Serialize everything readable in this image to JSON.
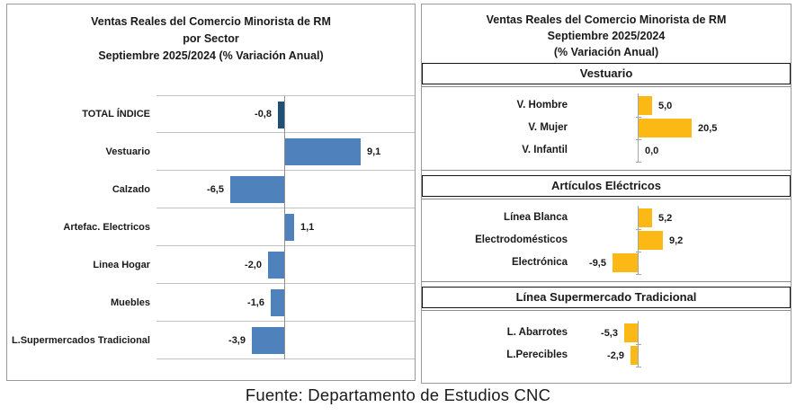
{
  "caption": "Fuente: Departamento de Estudios CNC",
  "colors": {
    "bar_blue": "#4F81BD",
    "bar_navy": "#1F4E79",
    "bar_gold": "#FCB814",
    "gridline": "#C3C3C3",
    "panel_border": "#9A9A9A",
    "header_border": "#141414"
  },
  "chart_data": [
    {
      "type": "bar",
      "orientation": "horizontal",
      "title": "Ventas Reales del Comercio Minorista de RM por Sector Septiembre 2025/2024 (% Variación Anual)",
      "title_lines": [
        "Ventas Reales del Comercio Minorista de RM",
        "por Sector",
        "Septiembre 2025/2024 (% Variación Anual)"
      ],
      "categories": [
        "TOTAL ÍNDICE",
        "Vestuario",
        "Calzado",
        "Artefac. Electricos",
        "Linea Hogar",
        "Muebles",
        "L.Supermercados Tradicional"
      ],
      "values": [
        -0.8,
        9.1,
        -6.5,
        1.1,
        -2.0,
        -1.6,
        -3.9
      ],
      "value_labels": [
        "-0,8",
        "9,1",
        "-6,5",
        "1,1",
        "-2,0",
        "-1,6",
        "-3,9"
      ],
      "bar_colors": [
        "#1F4E79",
        "#4F81BD",
        "#4F81BD",
        "#4F81BD",
        "#4F81BD",
        "#4F81BD",
        "#4F81BD"
      ],
      "xlim": [
        -15,
        15
      ],
      "grid": "row-separators",
      "legend": "none",
      "ylabel": "",
      "xlabel": ""
    },
    {
      "type": "bar",
      "orientation": "horizontal",
      "title": "Ventas Reales del Comercio Minorista de RM Septiembre 2025/2024 (% Variación Anual)",
      "title_lines": [
        "Ventas Reales del Comercio Minorista de RM",
        "Septiembre 2025/2024",
        "(% Variación Anual)"
      ],
      "bar_color": "#FCB814",
      "xlim": [
        -23,
        58
      ],
      "grid": "off",
      "legend": "none",
      "sections": [
        {
          "header": "Vestuario",
          "categories": [
            "V. Hombre",
            "V. Mujer",
            "V. Infantil"
          ],
          "values": [
            5.0,
            20.5,
            0.0
          ],
          "value_labels": [
            "5,0",
            "20,5",
            "0,0"
          ],
          "bar_color": "#FCB814"
        },
        {
          "header": "Artículos Eléctricos",
          "categories": [
            "Línea Blanca",
            "Electrodomésticos",
            "Electrónica"
          ],
          "values": [
            5.2,
            9.2,
            -9.5
          ],
          "value_labels": [
            "5,2",
            "9,2",
            "-9,5"
          ],
          "bar_color": "#FCB814"
        },
        {
          "header": "Línea Supermercado Tradicional",
          "categories": [
            "L. Abarrotes",
            "L.Perecibles"
          ],
          "values": [
            -5.3,
            -2.9
          ],
          "value_labels": [
            "-5,3",
            "-2,9"
          ],
          "bar_color": "#FCB814"
        }
      ]
    }
  ]
}
